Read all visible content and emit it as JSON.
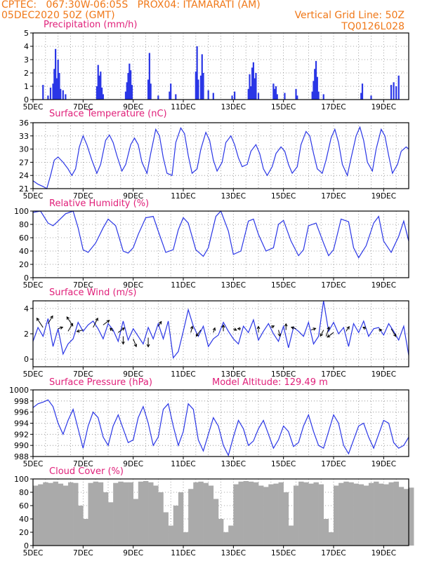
{
  "header": {
    "line1": "CPTEC:   067:30W-06:05S   PROX04: ITAMARATI (AM)",
    "line2": "05DEC2020 50Z (GMT)",
    "grid_note": "Vertical Grid Line: 50Z",
    "code": "TQ0126L028"
  },
  "colors": {
    "header": "#f07818",
    "title": "#e0207a",
    "series": "#2a36e6",
    "cloud": "#aaaaaa",
    "wind_arrow": "#000000"
  },
  "chart_data": [
    {
      "id": "precip",
      "type": "bar",
      "title": "Precipitation (mm/h)",
      "ylim": [
        0,
        5
      ],
      "yticks": [
        0,
        1,
        2,
        3,
        4,
        5
      ],
      "x_ticks": [
        "5DEC",
        "7DEC",
        "9DEC",
        "11DEC",
        "13DEC",
        "15DEC",
        "17DEC",
        "19DEC"
      ],
      "values": [
        [
          5.4,
          1.1
        ],
        [
          5.6,
          0.3
        ],
        [
          5.7,
          0.9
        ],
        [
          5.8,
          1.2
        ],
        [
          5.85,
          2.3
        ],
        [
          5.9,
          3.8
        ],
        [
          5.95,
          1.6
        ],
        [
          6.0,
          3.0
        ],
        [
          6.05,
          2.0
        ],
        [
          6.1,
          0.8
        ],
        [
          6.2,
          0.7
        ],
        [
          6.3,
          0.4
        ],
        [
          7.55,
          1.0
        ],
        [
          7.6,
          2.6
        ],
        [
          7.65,
          1.8
        ],
        [
          7.7,
          2.1
        ],
        [
          7.75,
          0.9
        ],
        [
          7.8,
          0.4
        ],
        [
          8.7,
          0.6
        ],
        [
          8.75,
          1.3
        ],
        [
          8.8,
          2.0
        ],
        [
          8.85,
          2.7
        ],
        [
          8.9,
          2.2
        ],
        [
          8.95,
          1.1
        ],
        [
          9.6,
          1.5
        ],
        [
          9.65,
          3.5
        ],
        [
          9.7,
          1.2
        ],
        [
          10.0,
          0.3
        ],
        [
          10.45,
          0.6
        ],
        [
          10.5,
          1.2
        ],
        [
          10.7,
          0.4
        ],
        [
          11.5,
          2.1
        ],
        [
          11.55,
          4.0
        ],
        [
          11.6,
          1.5
        ],
        [
          11.7,
          1.8
        ],
        [
          11.75,
          3.4
        ],
        [
          11.8,
          2.0
        ],
        [
          12.0,
          0.7
        ],
        [
          12.2,
          0.5
        ],
        [
          12.95,
          0.3
        ],
        [
          13.05,
          0.6
        ],
        [
          13.6,
          0.8
        ],
        [
          13.65,
          1.9
        ],
        [
          13.7,
          1.0
        ],
        [
          13.75,
          2.4
        ],
        [
          13.8,
          2.8
        ],
        [
          13.85,
          1.6
        ],
        [
          13.9,
          2.0
        ],
        [
          14.0,
          0.5
        ],
        [
          14.6,
          1.2
        ],
        [
          14.65,
          0.8
        ],
        [
          14.7,
          1.0
        ],
        [
          14.75,
          0.4
        ],
        [
          15.05,
          0.5
        ],
        [
          15.5,
          0.8
        ],
        [
          15.55,
          0.3
        ],
        [
          16.15,
          0.6
        ],
        [
          16.2,
          1.4
        ],
        [
          16.25,
          2.3
        ],
        [
          16.3,
          2.9
        ],
        [
          16.35,
          1.7
        ],
        [
          16.4,
          0.6
        ],
        [
          16.6,
          0.4
        ],
        [
          18.1,
          0.5
        ],
        [
          18.15,
          1.2
        ],
        [
          18.5,
          0.3
        ],
        [
          19.3,
          1.1
        ],
        [
          19.4,
          1.3
        ],
        [
          19.5,
          1.0
        ],
        [
          19.6,
          1.8
        ]
      ]
    },
    {
      "id": "temp",
      "type": "line",
      "title": "Surface Temperature (nC)",
      "ylim": [
        21,
        36
      ],
      "yticks": [
        21,
        24,
        27,
        30,
        33,
        36
      ],
      "x_ticks": [
        "5DEC",
        "7DEC",
        "9DEC",
        "11DEC",
        "13DEC",
        "15DEC",
        "17DEC",
        "19DEC"
      ],
      "x": [
        5.0,
        5.2,
        5.4,
        5.55,
        5.7,
        5.85,
        6.0,
        6.2,
        6.4,
        6.55,
        6.7,
        6.85,
        7.0,
        7.15,
        7.35,
        7.55,
        7.7,
        7.9,
        8.05,
        8.2,
        8.35,
        8.55,
        8.7,
        8.9,
        9.05,
        9.2,
        9.35,
        9.55,
        9.7,
        9.9,
        10.05,
        10.2,
        10.35,
        10.55,
        10.7,
        10.9,
        11.05,
        11.2,
        11.35,
        11.55,
        11.7,
        11.9,
        12.05,
        12.2,
        12.35,
        12.55,
        12.7,
        12.9,
        13.05,
        13.2,
        13.35,
        13.55,
        13.7,
        13.9,
        14.05,
        14.2,
        14.35,
        14.55,
        14.7,
        14.9,
        15.05,
        15.2,
        15.35,
        15.55,
        15.7,
        15.9,
        16.05,
        16.2,
        16.35,
        16.55,
        16.7,
        16.9,
        17.05,
        17.2,
        17.35,
        17.55,
        17.7,
        17.9,
        18.05,
        18.2,
        18.35,
        18.55,
        18.7,
        18.9,
        19.05,
        19.2,
        19.35,
        19.55,
        19.7,
        19.9,
        20.0
      ],
      "values": [
        22.8,
        22.0,
        21.5,
        21.0,
        24.0,
        27.5,
        28.2,
        27.0,
        25.5,
        24.0,
        25.5,
        30.5,
        33.0,
        31.0,
        27.5,
        24.5,
        26.5,
        32.0,
        33.2,
        31.5,
        28.5,
        25.0,
        26.5,
        31.0,
        32.5,
        31.0,
        27.0,
        24.5,
        29.0,
        34.5,
        33.0,
        28.0,
        24.5,
        24.0,
        31.5,
        34.8,
        33.5,
        28.5,
        24.5,
        25.5,
        30.0,
        33.8,
        32.0,
        27.5,
        25.0,
        27.0,
        31.5,
        33.0,
        31.0,
        28.0,
        26.0,
        26.5,
        29.5,
        31.0,
        29.0,
        25.5,
        24.0,
        26.0,
        29.0,
        30.5,
        29.5,
        26.5,
        24.5,
        26.0,
        31.0,
        34.0,
        33.0,
        29.0,
        25.5,
        24.5,
        27.5,
        32.5,
        34.5,
        31.5,
        26.5,
        24.0,
        28.0,
        33.0,
        35.0,
        32.0,
        27.0,
        25.0,
        30.0,
        34.5,
        33.0,
        28.5,
        24.5,
        26.5,
        29.5,
        30.5,
        30.0
      ]
    },
    {
      "id": "rh",
      "type": "line",
      "title": "Relative Humidity (%)",
      "ylim": [
        0,
        100
      ],
      "yticks": [
        0,
        20,
        40,
        60,
        80,
        100
      ],
      "x_ticks": [
        "5DEC",
        "7DEC",
        "9DEC",
        "11DEC",
        "13DEC",
        "15DEC",
        "17DEC",
        "19DEC"
      ],
      "x": [
        5.0,
        5.3,
        5.6,
        5.8,
        6.0,
        6.3,
        6.6,
        6.8,
        7.0,
        7.2,
        7.5,
        7.8,
        8.0,
        8.3,
        8.6,
        8.8,
        9.0,
        9.2,
        9.5,
        9.8,
        10.0,
        10.3,
        10.6,
        10.8,
        11.0,
        11.2,
        11.5,
        11.8,
        12.0,
        12.3,
        12.5,
        12.8,
        13.0,
        13.3,
        13.6,
        13.8,
        14.0,
        14.3,
        14.6,
        14.8,
        15.0,
        15.3,
        15.6,
        15.8,
        16.0,
        16.3,
        16.6,
        16.8,
        17.0,
        17.3,
        17.6,
        17.8,
        18.0,
        18.3,
        18.6,
        18.8,
        19.0,
        19.3,
        19.6,
        19.8,
        20.0
      ],
      "values": [
        98,
        100,
        82,
        78,
        85,
        96,
        100,
        75,
        42,
        38,
        52,
        75,
        88,
        78,
        40,
        37,
        45,
        65,
        90,
        92,
        70,
        38,
        42,
        72,
        90,
        82,
        42,
        32,
        45,
        92,
        100,
        70,
        35,
        40,
        85,
        88,
        65,
        40,
        45,
        80,
        86,
        55,
        33,
        42,
        78,
        82,
        52,
        33,
        42,
        88,
        84,
        45,
        30,
        48,
        82,
        92,
        55,
        38,
        62,
        85,
        55
      ]
    },
    {
      "id": "wind",
      "type": "line",
      "title": "Surface Wind (m/s)",
      "ylim": [
        -0.6,
        4.6
      ],
      "yticks": [
        0,
        2,
        4
      ],
      "x_ticks": [
        "5DEC",
        "7DEC",
        "9DEC",
        "11DEC",
        "13DEC",
        "15DEC",
        "17DEC",
        "19DEC"
      ],
      "x": [
        5.0,
        5.2,
        5.4,
        5.6,
        5.8,
        6.0,
        6.2,
        6.4,
        6.6,
        6.8,
        7.0,
        7.2,
        7.4,
        7.6,
        7.8,
        8.0,
        8.2,
        8.4,
        8.6,
        8.8,
        9.0,
        9.2,
        9.4,
        9.6,
        9.8,
        10.0,
        10.2,
        10.4,
        10.6,
        10.8,
        11.0,
        11.2,
        11.4,
        11.6,
        11.8,
        12.0,
        12.2,
        12.4,
        12.6,
        12.8,
        13.0,
        13.2,
        13.4,
        13.6,
        13.8,
        14.0,
        14.2,
        14.4,
        14.6,
        14.8,
        15.0,
        15.2,
        15.4,
        15.6,
        15.8,
        16.0,
        16.2,
        16.4,
        16.6,
        16.8,
        17.0,
        17.2,
        17.4,
        17.6,
        17.8,
        18.0,
        18.2,
        18.4,
        18.6,
        18.8,
        19.0,
        19.2,
        19.4,
        19.6,
        19.8,
        20.0
      ],
      "values": [
        1.4,
        2.5,
        1.8,
        3.2,
        1.0,
        2.4,
        0.4,
        1.2,
        1.6,
        2.9,
        2.2,
        2.7,
        3.0,
        2.4,
        1.6,
        2.8,
        2.3,
        1.4,
        3.0,
        1.5,
        2.4,
        1.8,
        1.2,
        2.5,
        1.6,
        2.8,
        1.6,
        3.0,
        0.1,
        0.6,
        2.2,
        3.9,
        2.6,
        1.8,
        2.6,
        1.0,
        1.6,
        1.9,
        2.9,
        2.2,
        1.6,
        1.2,
        2.6,
        2.1,
        3.1,
        1.5,
        2.2,
        2.8,
        2.0,
        1.4,
        2.6,
        0.9,
        2.5,
        2.2,
        1.8,
        2.9,
        1.2,
        1.8,
        4.6,
        2.2,
        2.9,
        2.0,
        2.5,
        1.0,
        2.8,
        2.1,
        3.0,
        1.8,
        2.4,
        2.5,
        1.9,
        2.8,
        2.2,
        1.5,
        2.6,
        0.3
      ],
      "arrows": [
        [
          5.4,
          2.5,
          -0.4,
          0.6
        ],
        [
          5.6,
          2.8,
          0.3,
          0.5
        ],
        [
          6.0,
          2.4,
          0.3,
          0.1
        ],
        [
          6.4,
          2.2,
          0.3,
          0.5
        ],
        [
          6.6,
          2.6,
          -0.4,
          0.6
        ],
        [
          7.0,
          2.3,
          -0.4,
          -0.1
        ],
        [
          7.4,
          2.5,
          0.3,
          0.6
        ],
        [
          7.8,
          2.7,
          0.4,
          0.3
        ],
        [
          8.2,
          2.2,
          -0.2,
          0.2
        ],
        [
          8.4,
          2.1,
          0.4,
          0.3
        ],
        [
          8.6,
          1.8,
          0.0,
          -0.5
        ],
        [
          9.0,
          1.6,
          0.2,
          -0.5
        ],
        [
          9.6,
          1.7,
          0.0,
          -0.6
        ],
        [
          10.0,
          2.6,
          0.2,
          0.3
        ],
        [
          11.3,
          2.1,
          0.1,
          0.4
        ],
        [
          11.7,
          2.3,
          -0.3,
          -0.4
        ],
        [
          12.2,
          2.1,
          0.1,
          0.3
        ],
        [
          12.6,
          2.2,
          0.0,
          0.4
        ],
        [
          13.0,
          2.4,
          0.2,
          -0.1
        ],
        [
          13.3,
          2.4,
          -0.2,
          0.0
        ],
        [
          14.0,
          2.1,
          0.0,
          0.4
        ],
        [
          14.5,
          2.5,
          0.2,
          0.1
        ],
        [
          14.8,
          2.3,
          0.1,
          -0.4
        ],
        [
          15.1,
          2.3,
          0.0,
          0.4
        ],
        [
          15.5,
          2.4,
          -0.3,
          0.1
        ],
        [
          16.1,
          2.3,
          0.3,
          0.1
        ],
        [
          16.6,
          2.3,
          -0.2,
          -0.4
        ],
        [
          16.7,
          1.8,
          0.2,
          0.6
        ],
        [
          17.0,
          2.1,
          -0.4,
          -0.3
        ],
        [
          17.5,
          2.2,
          0.2,
          0.3
        ],
        [
          18.3,
          2.4,
          -0.2,
          0.1
        ],
        [
          18.8,
          2.3,
          0.2,
          0.0
        ],
        [
          19.3,
          2.4,
          0.3,
          -0.5
        ]
      ]
    },
    {
      "id": "pres",
      "type": "line",
      "title": "Surface Pressure (hPa)",
      "note": "Model Altitude: 129.49 m",
      "ylim": [
        988,
        1000
      ],
      "yticks": [
        988,
        990,
        992,
        994,
        996,
        998,
        1000
      ],
      "x_ticks": [
        "5DEC",
        "7DEC",
        "9DEC",
        "11DEC",
        "13DEC",
        "15DEC",
        "17DEC",
        "19DEC"
      ],
      "x": [
        5.0,
        5.2,
        5.4,
        5.6,
        5.8,
        6.0,
        6.2,
        6.4,
        6.6,
        6.8,
        7.0,
        7.2,
        7.4,
        7.6,
        7.8,
        8.0,
        8.2,
        8.4,
        8.6,
        8.8,
        9.0,
        9.2,
        9.4,
        9.6,
        9.8,
        10.0,
        10.2,
        10.4,
        10.6,
        10.8,
        11.0,
        11.2,
        11.4,
        11.6,
        11.8,
        12.0,
        12.2,
        12.4,
        12.6,
        12.8,
        13.0,
        13.2,
        13.4,
        13.6,
        13.8,
        14.0,
        14.2,
        14.4,
        14.6,
        14.8,
        15.0,
        15.2,
        15.4,
        15.6,
        15.8,
        16.0,
        16.2,
        16.4,
        16.6,
        16.8,
        17.0,
        17.2,
        17.4,
        17.6,
        17.8,
        18.0,
        18.2,
        18.4,
        18.6,
        18.8,
        19.0,
        19.2,
        19.4,
        19.6,
        19.8,
        20.0
      ],
      "values": [
        996.8,
        997.5,
        997.8,
        998.2,
        997.0,
        994.0,
        992.0,
        994.5,
        996.5,
        993.0,
        989.5,
        993.5,
        996.0,
        995.0,
        991.5,
        990.0,
        993.5,
        995.5,
        993.0,
        990.5,
        991.0,
        995.0,
        997.0,
        994.0,
        990.0,
        991.5,
        996.5,
        997.5,
        993.5,
        990.0,
        992.5,
        997.5,
        996.5,
        991.0,
        989.0,
        992.0,
        995.0,
        993.5,
        990.0,
        988.2,
        991.5,
        994.5,
        993.0,
        990.0,
        990.8,
        993.0,
        994.5,
        992.0,
        989.5,
        991.0,
        993.5,
        992.5,
        989.8,
        990.5,
        993.5,
        995.5,
        992.5,
        990.0,
        989.5,
        992.5,
        995.5,
        994.0,
        990.0,
        988.5,
        991.0,
        993.5,
        994.0,
        991.5,
        989.5,
        992.0,
        994.5,
        994.0,
        990.5,
        989.5,
        990.0,
        991.5
      ]
    },
    {
      "id": "cloud",
      "type": "bar",
      "title": "Cloud Cover (%)",
      "ylim": [
        0,
        100
      ],
      "yticks": [
        0,
        20,
        40,
        60,
        80,
        100
      ],
      "x_ticks": [
        "5DEC",
        "7DEC",
        "9DEC",
        "11DEC",
        "13DEC",
        "15DEC",
        "17DEC",
        "19DEC"
      ],
      "x": [
        5.0,
        5.2,
        5.4,
        5.6,
        5.8,
        6.0,
        6.2,
        6.4,
        6.6,
        6.8,
        7.0,
        7.2,
        7.4,
        7.6,
        7.8,
        8.0,
        8.2,
        8.4,
        8.6,
        8.8,
        9.0,
        9.2,
        9.4,
        9.6,
        9.8,
        10.0,
        10.2,
        10.4,
        10.6,
        10.8,
        11.0,
        11.2,
        11.4,
        11.6,
        11.8,
        12.0,
        12.2,
        12.4,
        12.6,
        12.8,
        13.0,
        13.2,
        13.4,
        13.6,
        13.8,
        14.0,
        14.2,
        14.4,
        14.6,
        14.8,
        15.0,
        15.2,
        15.4,
        15.6,
        15.8,
        16.0,
        16.2,
        16.4,
        16.6,
        16.8,
        17.0,
        17.2,
        17.4,
        17.6,
        17.8,
        18.0,
        18.2,
        18.4,
        18.6,
        18.8,
        19.0,
        19.2,
        19.4,
        19.6,
        19.8,
        20.0
      ],
      "values": [
        90,
        92,
        95,
        94,
        96,
        93,
        90,
        95,
        94,
        60,
        40,
        94,
        96,
        95,
        80,
        65,
        94,
        96,
        95,
        95,
        70,
        96,
        97,
        95,
        90,
        80,
        50,
        30,
        60,
        80,
        20,
        85,
        95,
        96,
        94,
        90,
        70,
        40,
        20,
        30,
        92,
        96,
        97,
        96,
        95,
        90,
        88,
        92,
        93,
        95,
        80,
        30,
        90,
        96,
        95,
        93,
        95,
        92,
        40,
        20,
        90,
        94,
        96,
        95,
        93,
        92,
        90,
        94,
        96,
        93,
        92,
        95,
        96,
        88,
        85,
        87
      ]
    }
  ]
}
